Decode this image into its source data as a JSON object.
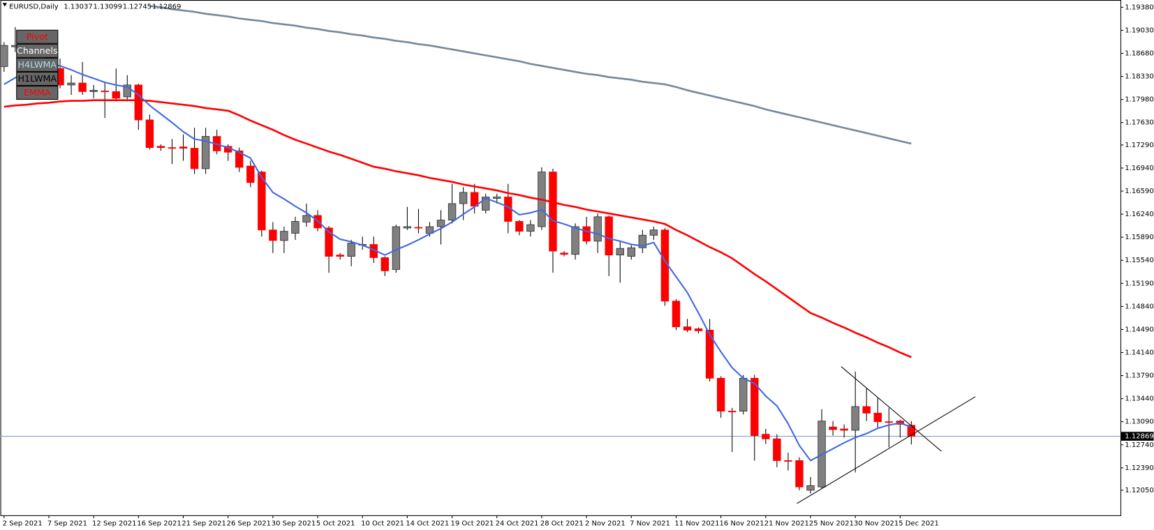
{
  "chart_data": {
    "type": "candlestick",
    "title": "EURUSD,Daily",
    "ohlc": [
      1.13037,
      1.13099,
      1.12745,
      1.12869
    ],
    "bid": 1.12869,
    "bid_color": "#7b93c0",
    "up_color": "#808080",
    "down_color": "#ff0000",
    "wick_color": "#000000",
    "categories": [
      "2 Sep 2021",
      null,
      null,
      null,
      "7 Sep 2021",
      null,
      null,
      null,
      "12 Sep 2021",
      null,
      null,
      null,
      "16 Sep 2021",
      null,
      null,
      null,
      "21 Sep 2021",
      null,
      null,
      null,
      "26 Sep 2021",
      null,
      null,
      null,
      "30 Sep 2021",
      null,
      null,
      null,
      "5 Oct 2021",
      null,
      null,
      null,
      "10 Oct 2021",
      null,
      null,
      null,
      "14 Oct 2021",
      null,
      null,
      null,
      "19 Oct 2021",
      null,
      null,
      null,
      "24 Oct 2021",
      null,
      null,
      null,
      "28 Oct 2021",
      null,
      null,
      null,
      "2 Nov 2021",
      null,
      null,
      null,
      "7 Nov 2021",
      null,
      null,
      null,
      "11 Nov 2021",
      null,
      null,
      null,
      "16 Nov 2021",
      null,
      null,
      null,
      "21 Nov 2021",
      null,
      null,
      null,
      "25 Nov 2021",
      null,
      null,
      null,
      "30 Nov 2021",
      null,
      null,
      null,
      "5 Dec 2021",
      null
    ],
    "open": [
      1.1848,
      1.1878,
      1.188,
      1.1882,
      1.1875,
      1.1845,
      1.182,
      1.1823,
      1.181,
      1.1811,
      1.181,
      1.1802,
      1.182,
      1.1767,
      1.1727,
      1.1725,
      1.1726,
      1.1724,
      1.1693,
      1.1742,
      1.1727,
      1.172,
      1.1697,
      1.1688,
      1.16,
      1.1584,
      1.1595,
      1.1612,
      1.1622,
      1.1603,
      1.1562,
      1.156,
      1.1577,
      1.1578,
      1.1558,
      1.154,
      1.1603,
      1.1604,
      1.1595,
      1.1605,
      1.1615,
      1.164,
      1.1657,
      1.163,
      1.1648,
      1.165,
      1.1613,
      1.1598,
      1.1605,
      1.1688,
      1.1565,
      1.1563,
      1.1605,
      1.1583,
      1.162,
      1.1562,
      1.156,
      1.1573,
      1.1592,
      1.16,
      1.1492,
      1.1453,
      1.145,
      1.1448,
      1.1375,
      1.1325,
      1.1325,
      1.1375,
      1.129,
      1.1283,
      1.125,
      1.125,
      1.1205,
      1.121,
      1.1301,
      1.1298,
      1.1296,
      1.1332,
      1.1322,
      1.1309,
      1.131,
      1.13037
    ],
    "high": [
      1.1885,
      1.1908,
      1.1895,
      1.189,
      1.1885,
      1.186,
      1.1835,
      1.1855,
      1.182,
      1.1825,
      1.1845,
      1.1835,
      1.1822,
      1.1775,
      1.173,
      1.1738,
      1.1745,
      1.1755,
      1.1755,
      1.1752,
      1.173,
      1.1725,
      1.1705,
      1.169,
      1.1612,
      1.1605,
      1.162,
      1.164,
      1.163,
      1.1606,
      1.1565,
      1.1585,
      1.159,
      1.159,
      1.156,
      1.1608,
      1.1635,
      1.1632,
      1.1612,
      1.163,
      1.167,
      1.1665,
      1.167,
      1.1655,
      1.1655,
      1.167,
      1.1615,
      1.1615,
      1.1695,
      1.1693,
      1.1568,
      1.161,
      1.162,
      1.1625,
      1.1622,
      1.1582,
      1.1578,
      1.16,
      1.1605,
      1.1603,
      1.1495,
      1.1465,
      1.1452,
      1.1465,
      1.1378,
      1.133,
      1.138,
      1.138,
      1.1298,
      1.129,
      1.1262,
      1.1255,
      1.1225,
      1.1328,
      1.131,
      1.1305,
      1.1385,
      1.136,
      1.1345,
      1.133,
      1.1312,
      1.13099
    ],
    "low": [
      1.184,
      1.187,
      1.187,
      1.1865,
      1.1838,
      1.1815,
      1.1805,
      1.1805,
      1.18,
      1.177,
      1.1795,
      1.1795,
      1.1752,
      1.1722,
      1.172,
      1.17,
      1.1705,
      1.1685,
      1.1685,
      1.1715,
      1.1705,
      1.1688,
      1.1665,
      1.159,
      1.1565,
      1.1565,
      1.1585,
      1.1605,
      1.1598,
      1.1535,
      1.1555,
      1.1545,
      1.157,
      1.155,
      1.153,
      1.1535,
      1.16,
      1.1595,
      1.159,
      1.1578,
      1.161,
      1.1615,
      1.1625,
      1.1625,
      1.164,
      1.1595,
      1.1592,
      1.159,
      1.16,
      1.1535,
      1.156,
      1.1555,
      1.1578,
      1.1565,
      1.153,
      1.152,
      1.1555,
      1.1565,
      1.1585,
      1.1485,
      1.1448,
      1.1445,
      1.1443,
      1.137,
      1.1315,
      1.1263,
      1.132,
      1.125,
      1.1275,
      1.124,
      1.1235,
      1.1205,
      1.12,
      1.1208,
      1.1288,
      1.1285,
      1.1232,
      1.131,
      1.13,
      1.127,
      1.1285,
      1.12745
    ],
    "close": [
      1.188,
      1.188,
      1.1882,
      1.1875,
      1.1845,
      1.182,
      1.1823,
      1.181,
      1.1812,
      1.181,
      1.18,
      1.182,
      1.1767,
      1.1725,
      1.1725,
      1.1724,
      1.1724,
      1.1693,
      1.1742,
      1.172,
      1.1718,
      1.1695,
      1.1672,
      1.16,
      1.1584,
      1.1598,
      1.1613,
      1.1622,
      1.1603,
      1.156,
      1.156,
      1.158,
      1.1578,
      1.1558,
      1.1538,
      1.1605,
      1.1605,
      1.1603,
      1.1605,
      1.1615,
      1.164,
      1.1657,
      1.1636,
      1.165,
      1.165,
      1.1613,
      1.1598,
      1.1608,
      1.1688,
      1.1568,
      1.1563,
      1.1605,
      1.1583,
      1.162,
      1.1562,
      1.1572,
      1.1573,
      1.1592,
      1.16,
      1.1492,
      1.1453,
      1.1448,
      1.1447,
      1.1375,
      1.1325,
      1.1324,
      1.1375,
      1.1288,
      1.1283,
      1.125,
      1.1249,
      1.121,
      1.1212,
      1.131,
      1.1297,
      1.1296,
      1.1332,
      1.1322,
      1.1309,
      1.1308,
      1.1305,
      1.12869
    ],
    "series": [
      {
        "color": "#778899",
        "values": [
          null,
          null,
          null,
          null,
          null,
          null,
          null,
          null,
          null,
          null,
          null,
          null,
          null,
          1.194,
          1.1938,
          1.1935,
          1.1933,
          1.1931,
          1.1928,
          1.1926,
          1.1924,
          1.1921,
          1.1919,
          1.1917,
          1.1914,
          1.1912,
          1.191,
          1.1907,
          1.1905,
          1.1902,
          1.19,
          1.1897,
          1.1895,
          1.1892,
          1.189,
          1.1887,
          1.1885,
          1.1882,
          1.188,
          1.1877,
          1.1874,
          1.1871,
          1.1868,
          1.1865,
          1.1862,
          1.1859,
          1.1856,
          1.1852,
          1.1849,
          1.1846,
          1.1843,
          1.184,
          1.1837,
          1.1835,
          1.1832,
          1.183,
          1.1828,
          1.1825,
          1.1823,
          1.1821,
          1.1817,
          1.1812,
          1.1808,
          1.1804,
          1.18,
          1.1796,
          1.1792,
          1.1788,
          1.1783,
          1.1779,
          1.1775,
          1.1771,
          1.1767,
          1.1763,
          1.1759,
          1.1755,
          1.1751,
          1.1747,
          1.1743,
          1.1739,
          1.1735,
          1.1731
        ]
      },
      {
        "color": "#ff0000",
        "values": [
          1.1787,
          1.1789,
          1.179,
          1.1792,
          1.1793,
          1.1795,
          1.1796,
          1.1796,
          1.1797,
          1.1797,
          1.1797,
          1.1797,
          1.1797,
          1.1796,
          1.1794,
          1.1792,
          1.179,
          1.1788,
          1.1785,
          1.1783,
          1.1781,
          1.1774,
          1.1766,
          1.1759,
          1.1752,
          1.1744,
          1.1737,
          1.1731,
          1.1725,
          1.1719,
          1.1714,
          1.1708,
          1.1702,
          1.1696,
          1.1693,
          1.1689,
          1.1686,
          1.1683,
          1.1679,
          1.1676,
          1.1673,
          1.1669,
          1.1666,
          1.1663,
          1.166,
          1.1656,
          1.1653,
          1.1649,
          1.1646,
          1.1642,
          1.1638,
          1.1635,
          1.1631,
          1.1628,
          1.1625,
          1.1622,
          1.1619,
          1.1616,
          1.1613,
          1.1609,
          1.16,
          1.1592,
          1.1583,
          1.1574,
          1.1566,
          1.1557,
          1.1545,
          1.1533,
          1.1522,
          1.151,
          1.1498,
          1.1486,
          1.1474,
          1.1467,
          1.1459,
          1.1452,
          1.1444,
          1.1437,
          1.1429,
          1.1422,
          1.1414,
          1.1407
        ]
      },
      {
        "color": "#4169e1",
        "values": [
          1.1821,
          1.1831,
          1.184,
          1.1849,
          1.1852,
          1.1849,
          1.1843,
          1.1836,
          1.183,
          1.1824,
          1.182,
          1.1817,
          1.1805,
          1.1789,
          1.1776,
          1.1763,
          1.1749,
          1.1738,
          1.1735,
          1.173,
          1.1725,
          1.1718,
          1.1709,
          1.168,
          1.1657,
          1.1647,
          1.1636,
          1.1626,
          1.1614,
          1.1597,
          1.1586,
          1.1582,
          1.1577,
          1.157,
          1.1562,
          1.157,
          1.1577,
          1.1585,
          1.1594,
          1.1602,
          1.1612,
          1.1624,
          1.1635,
          1.1648,
          1.1642,
          1.1635,
          1.1623,
          1.1626,
          1.1631,
          1.1614,
          1.1609,
          1.1603,
          1.1598,
          1.1594,
          1.1587,
          1.1583,
          1.1578,
          1.1576,
          1.1581,
          1.1553,
          1.1529,
          1.1505,
          1.1474,
          1.1441,
          1.1415,
          1.1391,
          1.1375,
          1.1367,
          1.1348,
          1.1333,
          1.1306,
          1.1273,
          1.125,
          1.1259,
          1.1268,
          1.1277,
          1.1285,
          1.1291,
          1.1299,
          1.1304,
          1.1307,
          1.1301
        ]
      }
    ],
    "ylim": [
      1.1167,
      1.1949
    ],
    "yticks": [
      {
        "value": 1.1938,
        "label": "1.19380"
      },
      {
        "value": 1.1903,
        "label": "1.19030"
      },
      {
        "value": 1.1868,
        "label": "1.18680"
      },
      {
        "value": 1.1833,
        "label": "1.18330"
      },
      {
        "value": 1.1798,
        "label": "1.17980"
      },
      {
        "value": 1.1763,
        "label": "1.17630"
      },
      {
        "value": 1.1729,
        "label": "1.17290"
      },
      {
        "value": 1.1694,
        "label": "1.16940"
      },
      {
        "value": 1.1659,
        "label": "1.16590"
      },
      {
        "value": 1.1624,
        "label": "1.16240"
      },
      {
        "value": 1.1589,
        "label": "1.15890"
      },
      {
        "value": 1.1554,
        "label": "1.15540"
      },
      {
        "value": 1.1519,
        "label": "1.15190"
      },
      {
        "value": 1.1484,
        "label": "1.14840"
      },
      {
        "value": 1.1449,
        "label": "1.14490"
      },
      {
        "value": 1.1414,
        "label": "1.14140"
      },
      {
        "value": 1.1379,
        "label": "1.13790"
      },
      {
        "value": 1.1344,
        "label": "1.13440"
      },
      {
        "value": 1.1309,
        "label": "1.13090"
      },
      {
        "value": 1.1274,
        "label": "1.12740"
      },
      {
        "value": 1.1239,
        "label": "1.12390"
      },
      {
        "value": 1.1205,
        "label": "1.12050"
      }
    ],
    "grid": false
  },
  "buttons": [
    {
      "text": "Pivot",
      "color": "#ff0000"
    },
    {
      "text": "Channels",
      "color": "#ffffff"
    },
    {
      "text": "H4LWMA",
      "color": "#add8e6"
    },
    {
      "text": "H1LWMA",
      "color": "#000000"
    },
    {
      "text": "EMMA",
      "color": "#ff0000"
    }
  ]
}
